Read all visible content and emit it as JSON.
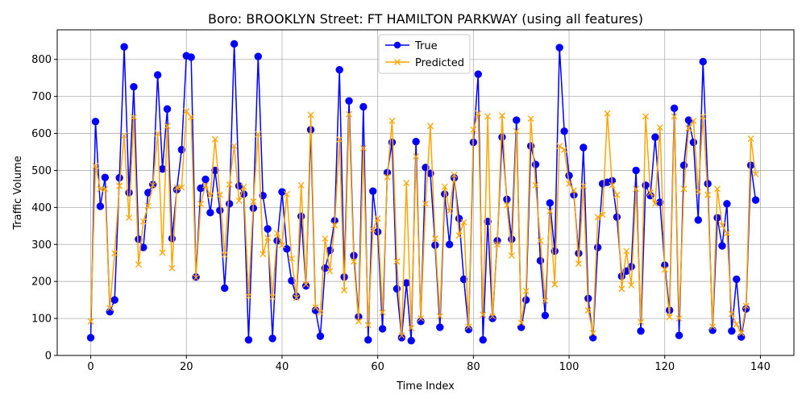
{
  "chart_data": {
    "type": "line",
    "title": "Boro: BROOKLYN Street: FT HAMILTON PARKWAY (using all features)",
    "xlabel": "Time Index",
    "ylabel": "Traffic Volume",
    "xlim": [
      -7,
      147
    ],
    "ylim": [
      0,
      880
    ],
    "xticks": [
      0,
      20,
      40,
      60,
      80,
      100,
      120,
      140
    ],
    "yticks": [
      0,
      100,
      200,
      300,
      400,
      500,
      600,
      700,
      800
    ],
    "grid": true,
    "legend_position": "top-center",
    "series": [
      {
        "name": "True",
        "color": "#0000ff",
        "marker": "circle",
        "values": [
          48,
          632,
          403,
          481,
          118,
          150,
          480,
          834,
          440,
          726,
          314,
          292,
          440,
          462,
          758,
          504,
          666,
          316,
          448,
          556,
          810,
          806,
          212,
          452,
          476,
          386,
          500,
          392,
          182,
          410,
          842,
          458,
          436,
          42,
          398,
          808,
          432,
          342,
          46,
          310,
          442,
          288,
          202,
          160,
          376,
          188,
          610,
          122,
          52,
          236,
          284,
          364,
          772,
          212,
          688,
          270,
          104,
          672,
          42,
          444,
          334,
          72,
          494,
          576,
          180,
          48,
          196,
          40,
          578,
          92,
          508,
          492,
          298,
          76,
          436,
          300,
          480,
          370,
          206,
          70,
          576,
          760,
          42,
          362,
          100,
          310,
          590,
          422,
          314,
          636,
          76,
          150,
          566,
          516,
          256,
          108,
          412,
          282,
          832,
          606,
          486,
          434,
          276,
          562,
          154,
          48,
          292,
          464,
          468,
          472,
          374,
          214,
          228,
          240,
          500,
          66,
          460,
          432,
          590,
          414,
          244,
          122,
          668,
          54,
          514,
          636,
          576,
          366,
          794,
          464,
          68,
          372,
          296,
          410,
          66,
          206,
          50,
          126,
          514,
          420
        ]
      },
      {
        "name": "Predicted",
        "color": "#ffa500",
        "marker": "x",
        "values": [
          92,
          512,
          450,
          450,
          128,
          276,
          458,
          594,
          372,
          644,
          246,
          362,
          404,
          460,
          600,
          278,
          620,
          236,
          454,
          454,
          660,
          644,
          210,
          410,
          460,
          432,
          584,
          434,
          272,
          462,
          566,
          418,
          456,
          160,
          416,
          598,
          274,
          318,
          158,
          330,
          298,
          436,
          262,
          156,
          460,
          192,
          650,
          130,
          116,
          316,
          228,
          352,
          584,
          176,
          652,
          254,
          92,
          560,
          82,
          340,
          370,
          116,
          482,
          634,
          254,
          54,
          466,
          74,
          538,
          100,
          410,
          620,
          316,
          106,
          456,
          390,
          488,
          324,
          360,
          78,
          610,
          654,
          110,
          646,
          106,
          300,
          648,
          406,
          270,
          606,
          88,
          174,
          640,
          460,
          310,
          148,
          390,
          192,
          566,
          556,
          464,
          446,
          248,
          458,
          122,
          60,
          374,
          380,
          654,
          460,
          434,
          180,
          282,
          190,
          450,
          90,
          646,
          440,
          410,
          616,
          232,
          104,
          646,
          100,
          450,
          614,
          634,
          442,
          646,
          434,
          78,
          450,
          352,
          330,
          112,
          84,
          60,
          134,
          586,
          490
        ]
      }
    ]
  }
}
